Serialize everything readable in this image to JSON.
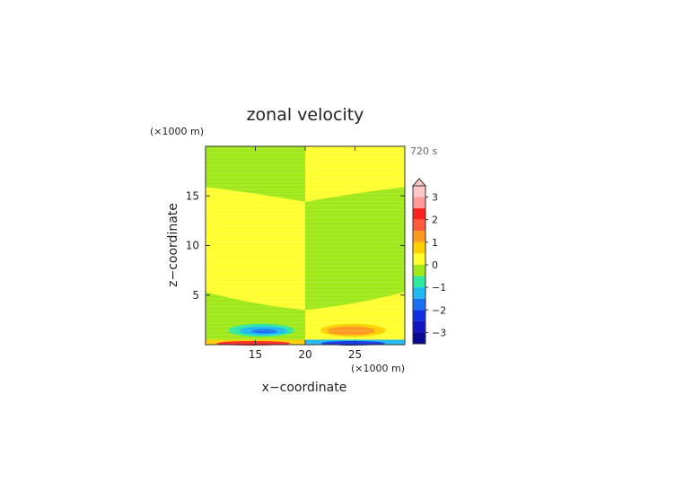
{
  "chart_data": {
    "type": "heatmap",
    "title": "zonal velocity",
    "xlabel": "x−coordinate",
    "ylabel": "z−coordinate",
    "x_unit": "(×1000 m)",
    "y_unit": "(×1000 m)",
    "time_label": "720 s",
    "xlim": [
      10,
      30
    ],
    "ylim": [
      0,
      20
    ],
    "xticks": [
      15,
      20,
      25
    ],
    "yticks": [
      5,
      10,
      15
    ],
    "colorbar": {
      "ticks": [
        3,
        2,
        1,
        0,
        -1,
        -2,
        -3
      ],
      "tick_labels": [
        "3",
        "2",
        "1",
        "0",
        "−1",
        "−2",
        "−3"
      ],
      "levels": [
        {
          "value": 3.25,
          "color": "#ffc8c8"
        },
        {
          "value": 2.75,
          "color": "#ff9a9a"
        },
        {
          "value": 2.25,
          "color": "#ff2020"
        },
        {
          "value": 1.75,
          "color": "#ff5a3a"
        },
        {
          "value": 1.25,
          "color": "#ff9a20"
        },
        {
          "value": 0.75,
          "color": "#ffd000"
        },
        {
          "value": 0.25,
          "color": "#ffff30"
        },
        {
          "value": -0.25,
          "color": "#a0e81a"
        },
        {
          "value": -0.75,
          "color": "#30e8a0"
        },
        {
          "value": -1.25,
          "color": "#20b8f0"
        },
        {
          "value": -1.75,
          "color": "#1a70f0"
        },
        {
          "value": -2.25,
          "color": "#1030e0"
        },
        {
          "value": -2.75,
          "color": "#1414c0"
        },
        {
          "value": -3.25,
          "color": "#0a0a90"
        }
      ]
    }
  }
}
